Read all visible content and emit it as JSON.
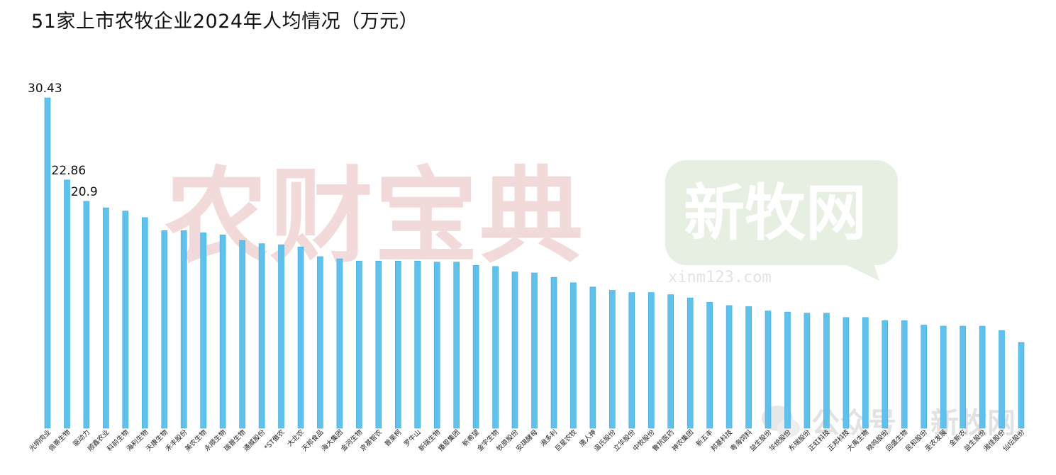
{
  "title": "51家上市农牧企业2024年人均情况（万元）",
  "watermarks": {
    "main": "农财宝典",
    "badge": "新牧网",
    "badge_url": "xinm123.com",
    "footer_left": "公众号",
    "footer_right": "新牧网"
  },
  "colors": {
    "bar": "#5ec2ef",
    "bar_edge": "#3aa6df",
    "wm_red": "#f2dada",
    "wm_green": "#e4eee0"
  },
  "chart_data": {
    "type": "bar",
    "categories": [
      "光明肉业",
      "佩蒂生物",
      "驱动力",
      "顺鑫农业",
      "科前生物",
      "海利生物",
      "天康生物",
      "禾丰股份",
      "美农生物",
      "永顺生物",
      "瑞普生物",
      "通威股份",
      "*ST傲农",
      "大北农",
      "天邦食品",
      "海大集团",
      "金河生物",
      "京基智农",
      "普莱柯",
      "罗牛山",
      "新瑞生物",
      "播恩集团",
      "新希望",
      "金宇生物",
      "牧原股份",
      "安琪酵母",
      "湘多利",
      "巨星农牧",
      "唐人神",
      "温氏股份",
      "立华股份",
      "中牧股份",
      "鲁抗医药",
      "神农集团",
      "新五丰",
      "邦基科技",
      "粤海饲料",
      "益生股份",
      "华统股份",
      "东瑞股份",
      "正虹科技",
      "正邦科技",
      "大禹生物",
      "晓鸣股份",
      "回盛生物",
      "民和股份",
      "圣农发展",
      "金新农",
      "益生股份",
      "湘佳股份",
      "仙坛股份"
    ],
    "values": [
      30.43,
      22.86,
      20.9,
      20.3,
      20.0,
      19.4,
      18.2,
      18.2,
      18.0,
      17.8,
      17.3,
      17.0,
      16.9,
      16.7,
      15.8,
      15.6,
      15.4,
      15.4,
      15.4,
      15.4,
      15.3,
      15.3,
      15.0,
      14.9,
      14.4,
      14.3,
      13.9,
      13.4,
      13.0,
      12.7,
      12.5,
      12.5,
      12.3,
      12.0,
      11.6,
      11.3,
      11.2,
      10.8,
      10.7,
      10.6,
      10.6,
      10.2,
      10.2,
      9.9,
      9.9,
      9.5,
      9.4,
      9.4,
      9.4,
      9.0,
      7.9
    ],
    "data_labels": {
      "0": "30.43",
      "1": "22.86",
      "2": "20.9"
    },
    "ylim": [
      0,
      30.43
    ],
    "grid": false,
    "legend": "none"
  }
}
